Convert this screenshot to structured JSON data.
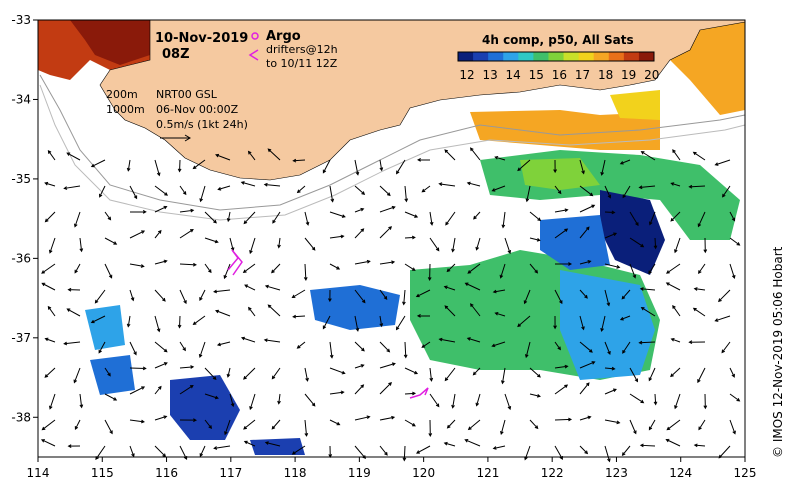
{
  "header": {
    "date": "10-Nov-2019",
    "hour": "08Z",
    "argo_label": "Argo",
    "drifters_label": "drifters@12h",
    "drifters_to": "to 10/11 12Z",
    "depth_200": "200m",
    "depth_1000": "1000m",
    "product": "NRT00 GSL",
    "product_date": "06-Nov 00:00Z",
    "scale_label": "0.5m/s (1kt 24h)"
  },
  "colorbar": {
    "title": "4h comp, p50, All Sats",
    "labels": [
      "12",
      "13",
      "14",
      "15",
      "16",
      "17",
      "18",
      "19",
      "20"
    ],
    "colors": [
      "#0a1f7a",
      "#1b3fb0",
      "#1f6fd6",
      "#2ea3e8",
      "#2fc8c4",
      "#3fbf6a",
      "#7fd23a",
      "#c9e02a",
      "#f2d21c",
      "#f5a623",
      "#e8701a",
      "#c23b12",
      "#8a1a0a"
    ]
  },
  "credit": "© IMOS 12-Nov-2019 05:06 Hobart",
  "map": {
    "lon_range": [
      114,
      125
    ],
    "lat_range": [
      -38.5,
      -33
    ],
    "x_ticks": [
      "114",
      "115",
      "116",
      "117",
      "118",
      "119",
      "120",
      "121",
      "122",
      "123",
      "124",
      "125"
    ],
    "y_ticks": [
      "-33",
      "-34",
      "-35",
      "-36",
      "-37",
      "-38"
    ],
    "land_color": "#f5c9a0",
    "argo_color": "#e020e0",
    "drifter_color": "#e020e0"
  }
}
